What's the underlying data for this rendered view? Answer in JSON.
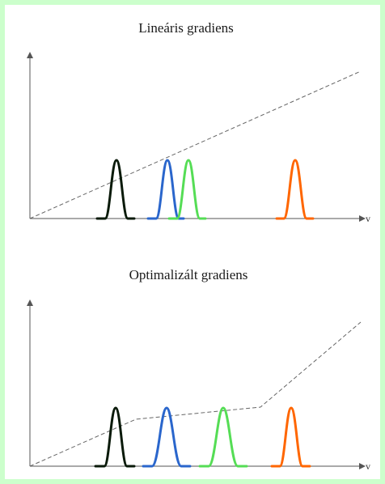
{
  "diagrams": [
    {
      "title": "Lineáris gradiens",
      "axis_label": "v",
      "colors": {
        "peak1": "#0a1a0a",
        "peak2": "#2a66cc",
        "peak3": "#55dd55",
        "peak4": "#ff6600"
      }
    },
    {
      "title": "Optimalizált gradiens",
      "axis_label": "v",
      "colors": {
        "peak1": "#0a1a0a",
        "peak2": "#2a66cc",
        "peak3": "#55dd55",
        "peak4": "#ff6600"
      }
    }
  ]
}
